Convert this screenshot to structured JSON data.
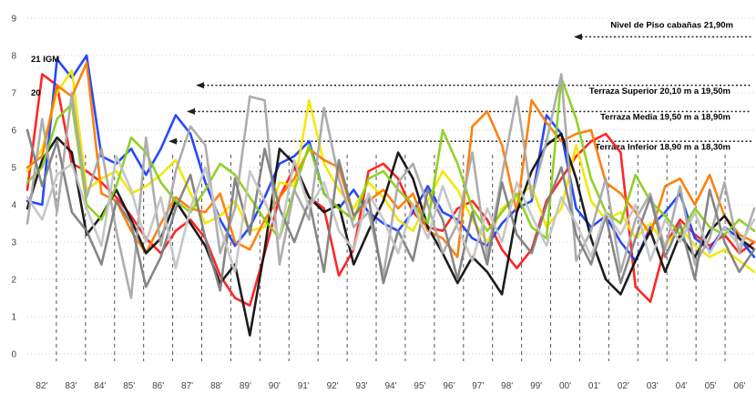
{
  "chart_data": {
    "type": "line",
    "title": "",
    "xlabel": "",
    "ylabel": "",
    "ylim": [
      0,
      9
    ],
    "yticks": [
      "0",
      "1",
      "2",
      "3",
      "4",
      "5",
      "6",
      "7",
      "8",
      "9"
    ],
    "grid": "horizontal dotted",
    "x_period_labels": [
      "82'",
      "83'",
      "84'",
      "85'",
      "86'",
      "87'",
      "88'",
      "89'",
      "90'",
      "91'",
      "92'",
      "93'",
      "94'",
      "95'",
      "96'",
      "97'",
      "98'",
      "99'",
      "00'",
      "01'",
      "02'",
      "03'",
      "04'",
      "05'",
      "06'"
    ],
    "reference_levels": [
      {
        "label": "Nivel de Piso cabañas 21,90m",
        "y": 8.5
      },
      {
        "label": "Terraza Superior 20,10 m a 19,50m",
        "y": 7.2
      },
      {
        "label": "Terraza Media 19,50 m a 18,90m",
        "y": 6.5
      },
      {
        "label": "Terraza Inferior 18,90 m a 18,30m",
        "y": 5.7
      }
    ],
    "annotations": [
      {
        "text": "21 IGM",
        "x": "82'",
        "y": 7.9
      },
      {
        "text": "20",
        "x": "82'",
        "y": 7.0
      }
    ],
    "series": [
      {
        "color": "#ff1a1a",
        "values": [
          4.4,
          7.5,
          7.2,
          5.1,
          4.9,
          4.6,
          4.2,
          3.7,
          3.1,
          2.7,
          3.3,
          3.6,
          3.1,
          2.1,
          1.5,
          1.3,
          2.7,
          4.2,
          5.0,
          4.2,
          3.9,
          2.1,
          2.8,
          4.9,
          5.1,
          4.7,
          3.8,
          3.4,
          3.3,
          3.9,
          4.1,
          3.6,
          2.8,
          2.3,
          2.8,
          4.1,
          4.7,
          5.3,
          5.7,
          5.9,
          5.4,
          1.8,
          1.4,
          2.9,
          3.6,
          3.2,
          2.9,
          3.2,
          2.7,
          3.0
        ]
      },
      {
        "color": "#1a3fff",
        "values": [
          4.1,
          4.0,
          7.9,
          7.4,
          8.0,
          5.3,
          5.1,
          5.5,
          4.8,
          5.5,
          6.4,
          5.9,
          4.6,
          3.6,
          2.9,
          3.4,
          4.2,
          5.1,
          5.3,
          5.7,
          4.3,
          3.9,
          4.4,
          3.8,
          3.5,
          3.3,
          3.8,
          4.5,
          3.8,
          3.6,
          3.1,
          2.9,
          3.5,
          3.9,
          4.1,
          6.4,
          5.9,
          3.9,
          3.4,
          3.7,
          3.0,
          2.5,
          3.4,
          3.8,
          4.3,
          3.1,
          2.8,
          3.4,
          3.1,
          2.6
        ]
      },
      {
        "color": "#f2e600",
        "values": [
          4.9,
          5.5,
          7.0,
          7.6,
          4.4,
          4.7,
          4.9,
          4.3,
          4.5,
          4.8,
          5.2,
          4.3,
          3.5,
          3.7,
          4.1,
          3.3,
          3.4,
          4.6,
          4.5,
          6.8,
          5.1,
          4.4,
          3.9,
          4.6,
          4.2,
          3.6,
          3.3,
          4.1,
          4.9,
          4.4,
          3.6,
          3.0,
          3.9,
          4.2,
          4.5,
          3.4,
          3.9,
          5.6,
          4.1,
          3.6,
          3.8,
          3.1,
          3.5,
          2.9,
          3.4,
          2.9,
          2.6,
          2.8,
          2.5,
          2.2
        ]
      },
      {
        "color": "#ff7a00",
        "values": [
          5.0,
          5.3,
          7.2,
          6.9,
          7.8,
          4.3,
          4.1,
          3.3,
          2.7,
          3.5,
          4.2,
          3.9,
          3.8,
          4.3,
          3.0,
          2.8,
          3.6,
          4.2,
          4.7,
          5.5,
          5.2,
          5.0,
          3.7,
          4.1,
          4.4,
          3.9,
          4.3,
          3.3,
          3.1,
          2.6,
          6.1,
          6.5,
          5.6,
          3.8,
          6.8,
          6.2,
          5.7,
          5.9,
          6.0,
          4.6,
          4.3,
          3.8,
          3.2,
          4.5,
          4.7,
          4.0,
          4.8,
          3.7,
          3.2,
          3.0
        ]
      },
      {
        "color": "#111111",
        "values": [
          3.9,
          5.2,
          5.8,
          5.4,
          3.2,
          3.7,
          4.4,
          3.6,
          2.7,
          3.1,
          4.1,
          3.5,
          2.9,
          1.9,
          2.4,
          0.5,
          2.8,
          5.5,
          5.1,
          4.2,
          3.8,
          4.0,
          2.4,
          3.3,
          4.1,
          5.4,
          4.7,
          3.4,
          2.7,
          1.9,
          2.6,
          2.2,
          1.6,
          3.8,
          4.9,
          5.6,
          5.9,
          4.7,
          3.1,
          2.0,
          1.6,
          2.5,
          3.3,
          2.2,
          3.2,
          2.6,
          3.3,
          3.7,
          3.1,
          2.8
        ]
      },
      {
        "color": "#8ccf1a",
        "values": [
          4.6,
          5.0,
          6.3,
          6.7,
          4.0,
          3.6,
          4.5,
          5.8,
          5.4,
          4.6,
          4.1,
          3.8,
          4.4,
          5.1,
          4.8,
          4.2,
          3.6,
          3.1,
          4.4,
          5.6,
          4.3,
          3.9,
          3.6,
          4.7,
          4.9,
          4.4,
          4.0,
          3.5,
          6.0,
          5.1,
          3.9,
          3.3,
          3.8,
          4.3,
          3.4,
          3.1,
          7.4,
          6.3,
          4.7,
          3.8,
          3.5,
          4.8,
          4.1,
          3.7,
          3.2,
          3.9,
          3.4,
          3.2,
          3.6,
          3.3
        ]
      },
      {
        "color": "#a9a9a9",
        "values": [
          3.5,
          6.3,
          3.8,
          7.0,
          4.2,
          5.5,
          3.3,
          1.5,
          5.8,
          2.9,
          4.9,
          6.1,
          5.6,
          2.7,
          3.9,
          6.9,
          6.8,
          2.4,
          4.4,
          3.6,
          6.6,
          4.7,
          3.4,
          3.8,
          2.1,
          4.6,
          5.1,
          4.0,
          2.7,
          3.5,
          5.4,
          2.6,
          4.8,
          6.9,
          4.2,
          5.7,
          7.5,
          2.5,
          3.3,
          4.7,
          2.2,
          3.6,
          4.3,
          2.8,
          4.5,
          2.4,
          3.1,
          4.6,
          2.7,
          3.9
        ]
      },
      {
        "color": "#7f7f7f",
        "values": [
          6.0,
          4.5,
          5.7,
          3.8,
          3.3,
          2.4,
          4.1,
          3.5,
          1.8,
          2.6,
          3.9,
          4.8,
          3.1,
          1.7,
          4.7,
          3.2,
          5.5,
          3.9,
          3.0,
          4.1,
          2.2,
          5.2,
          3.7,
          4.2,
          1.9,
          3.3,
          2.5,
          4.4,
          3.6,
          2.0,
          3.8,
          2.4,
          4.6,
          3.2,
          2.7,
          4.0,
          5.0,
          3.2,
          2.4,
          3.7,
          1.9,
          3.1,
          4.2,
          2.6,
          3.5,
          2.0,
          4.4,
          3.0,
          2.2,
          2.8
        ]
      },
      {
        "color": "#c4c4c4",
        "values": [
          4.2,
          3.6,
          4.8,
          5.1,
          3.9,
          2.9,
          5.3,
          4.4,
          3.0,
          4.2,
          2.3,
          3.9,
          5.0,
          3.4,
          2.2,
          4.9,
          4.1,
          3.1,
          5.2,
          3.9,
          4.6,
          3.3,
          2.8,
          4.3,
          3.6,
          2.7,
          4.0,
          3.1,
          4.5,
          3.4,
          2.5,
          3.9,
          3.0,
          4.6,
          3.7,
          2.9,
          4.2,
          3.5,
          2.6,
          3.8,
          3.2,
          4.0,
          2.5,
          3.6,
          3.0,
          3.8,
          2.7,
          3.4,
          2.9,
          3.6
        ]
      }
    ]
  }
}
